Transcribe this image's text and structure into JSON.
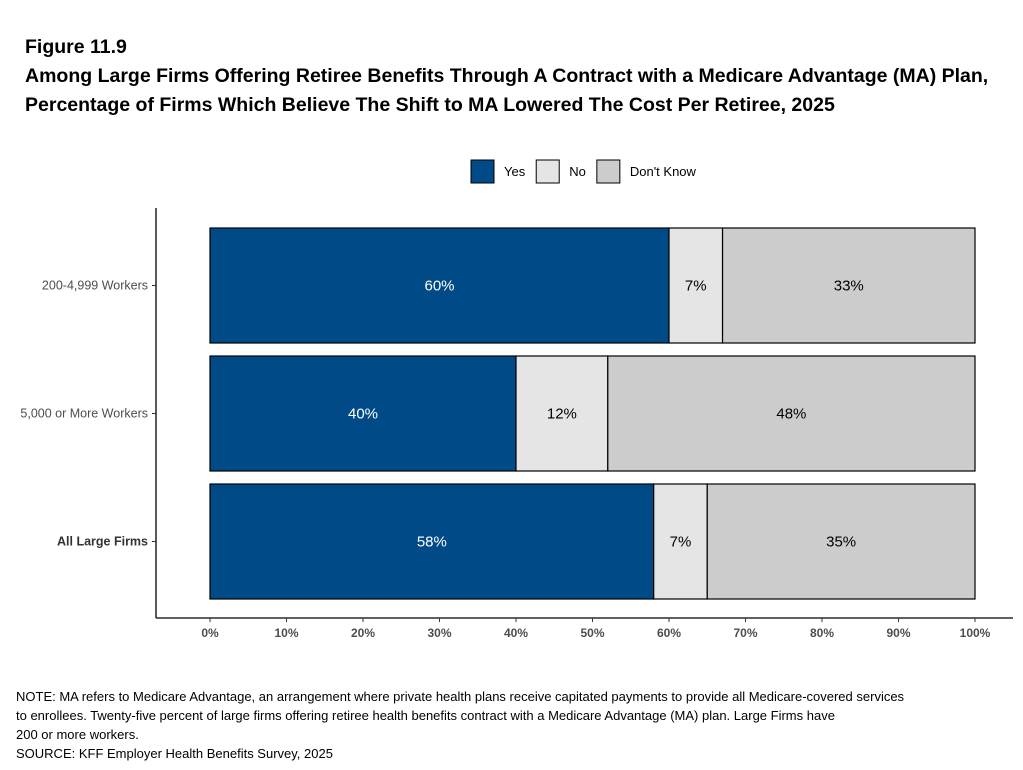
{
  "figure_label": "Figure 11.9",
  "title": "Among Large Firms Offering Retiree Benefits Through A Contract with a Medicare Advantage (MA) Plan, Percentage of Firms Which Believe The Shift to MA Lowered The Cost Per Retiree, 2025",
  "notes": [
    "NOTE: MA refers to Medicare Advantage, an arrangement where private health plans receive capitated payments to provide all Medicare-covered services",
    "to enrollees.  Twenty-five percent of large firms offering retiree health benefits contract with a Medicare Advantage (MA) plan.  Large Firms have",
    "200 or more workers.",
    "SOURCE: KFF Employer Health Benefits Survey, 2025"
  ],
  "chart_data": {
    "type": "bar",
    "orientation": "horizontal",
    "stacked": true,
    "categories": [
      "200-4,999 Workers",
      "5,000 or More Workers",
      "All Large Firms"
    ],
    "bold_categories": [
      "All Large Firms"
    ],
    "series": [
      {
        "name": "Yes",
        "color": "#004b87",
        "label_color": "#ffffff",
        "values": [
          60,
          40,
          58
        ]
      },
      {
        "name": "No",
        "color": "#e5e5e5",
        "label_color": "#000000",
        "values": [
          7,
          12,
          7
        ]
      },
      {
        "name": "Don't Know",
        "color": "#cccccc",
        "label_color": "#000000",
        "values": [
          33,
          48,
          35
        ]
      }
    ],
    "xlim": [
      0,
      100
    ],
    "x_ticks": [
      "0%",
      "10%",
      "20%",
      "30%",
      "40%",
      "50%",
      "60%",
      "70%",
      "80%",
      "90%",
      "100%"
    ],
    "legend_position": "top",
    "grid": false
  }
}
